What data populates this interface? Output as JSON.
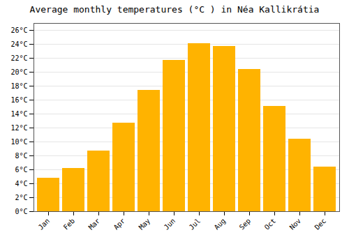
{
  "chart_data": {
    "type": "bar",
    "title": "Average monthly temperatures (°C ) in Néa Kallikrátia",
    "categories": [
      "Jan",
      "Feb",
      "Mar",
      "Apr",
      "May",
      "Jun",
      "Jul",
      "Aug",
      "Sep",
      "Oct",
      "Nov",
      "Dec"
    ],
    "values": [
      4.8,
      6.2,
      8.7,
      12.7,
      17.4,
      21.7,
      24.1,
      23.7,
      20.4,
      15.1,
      10.4,
      6.4
    ],
    "color": "#FFB300",
    "ylim": [
      0,
      27
    ],
    "yticks": [
      {
        "value": 0,
        "label": "0°C"
      },
      {
        "value": 2,
        "label": "2°C"
      },
      {
        "value": 4,
        "label": "4°C"
      },
      {
        "value": 6,
        "label": "6°C"
      },
      {
        "value": 8,
        "label": "8°C"
      },
      {
        "value": 10,
        "label": "10°C"
      },
      {
        "value": 12,
        "label": "12°C"
      },
      {
        "value": 14,
        "label": "14°C"
      },
      {
        "value": 16,
        "label": "16°C"
      },
      {
        "value": 18,
        "label": "18°C"
      },
      {
        "value": 20,
        "label": "20°C"
      },
      {
        "value": 22,
        "label": "22°C"
      },
      {
        "value": 24,
        "label": "24°C"
      },
      {
        "value": 26,
        "label": "26°C"
      }
    ],
    "grid": true
  }
}
